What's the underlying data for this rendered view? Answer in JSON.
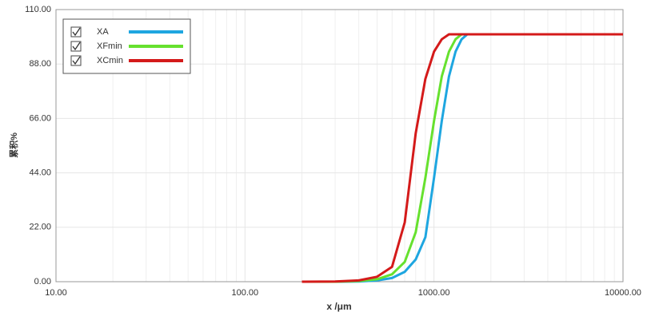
{
  "chart_data": {
    "type": "line",
    "x_label": "x /μm",
    "y_label": "累积%",
    "log_x": true,
    "xlim": [
      10,
      10000
    ],
    "xticks": [
      {
        "value": 10,
        "label": "10.00"
      },
      {
        "value": 100,
        "label": "100.00"
      },
      {
        "value": 1000,
        "label": "1000.00"
      },
      {
        "value": 10000,
        "label": "10000.00"
      }
    ],
    "x_minor_ticks": [
      20,
      30,
      40,
      50,
      60,
      70,
      80,
      90,
      200,
      300,
      400,
      500,
      600,
      700,
      800,
      900,
      2000,
      3000,
      4000,
      5000,
      6000,
      7000,
      8000,
      9000
    ],
    "ylim": [
      0,
      110
    ],
    "yticks": [
      {
        "value": 0,
        "label": "0.00"
      },
      {
        "value": 22,
        "label": "22.00"
      },
      {
        "value": 44,
        "label": "44.00"
      },
      {
        "value": 66,
        "label": "66.00"
      },
      {
        "value": 88,
        "label": "88.00"
      },
      {
        "value": 110,
        "label": "110.00"
      }
    ],
    "grid": true,
    "legend": "upper left",
    "x": [
      200,
      300,
      400,
      500,
      600,
      700,
      800,
      900,
      1000,
      1100,
      1200,
      1300,
      1400,
      1500,
      2000,
      10000
    ],
    "series": [
      {
        "name": "XA",
        "color": "#1ea6e0",
        "values": [
          0,
          0,
          0.1,
          0.5,
          1.5,
          4,
          9,
          18,
          42,
          65,
          83,
          93,
          98,
          100,
          100,
          100
        ]
      },
      {
        "name": "XFmin",
        "color": "#66e12e",
        "values": [
          0,
          0,
          0.3,
          1,
          3,
          8,
          20,
          42,
          65,
          83,
          93,
          98,
          100,
          100,
          100,
          100
        ]
      },
      {
        "name": "XCmin",
        "color": "#d41a1a",
        "values": [
          0,
          0.1,
          0.5,
          2,
          6,
          24,
          60,
          82,
          93,
          98,
          100,
          100,
          100,
          100,
          100,
          100
        ]
      }
    ]
  }
}
